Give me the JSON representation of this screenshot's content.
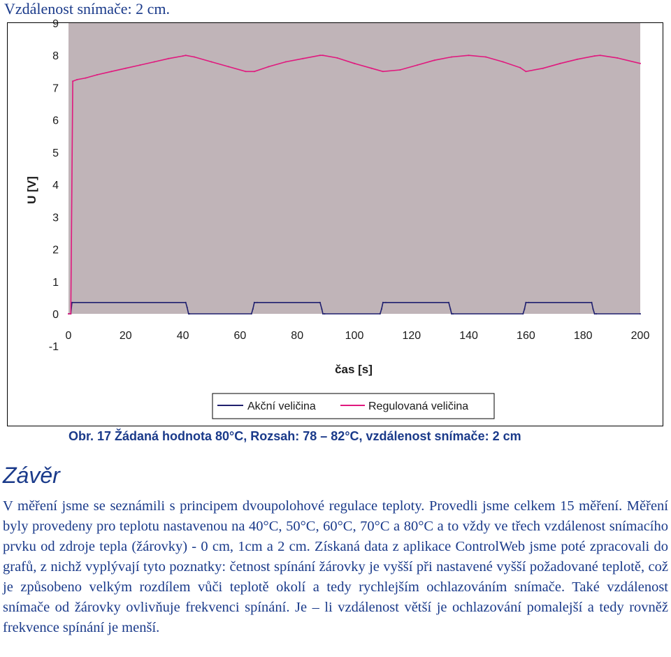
{
  "page": {
    "top_note": "Vzdálenost snímače: 2 cm.",
    "caption": "Obr.  17 Žádaná hodnota 80°C, Rozsah: 78 – 82°C, vzdálenost snímače: 2 cm",
    "section_heading": "Závěr",
    "paragraph": "V měření jsme se seznámili s principem dvoupolohové regulace teploty. Provedli jsme celkem 15 měření. Měření byly provedeny pro teplotu nastavenou na 40°C, 50°C, 60°C, 70°C a 80°C a to vždy ve třech vzdálenost snímacího prvku od zdroje tepla (žárovky) - 0 cm, 1cm a 2 cm. Získaná data z aplikace ControlWeb jsme poté zpracovali do grafů, z nichž vyplývají tyto poznatky: četnost spínání žárovky je vyšší při nastavené vyšší požadované teplotě, což je způsobeno velkým rozdílem vůči teplotě okolí a tedy rychlejším ochlazováním snímače. Také vzdálenost snímače od žárovky ovlivňuje frekvenci spínání. Je – li vzdálenost větší je ochlazování pomalejší a tedy rovněž frekvence spínání je menší."
  },
  "chart_data": {
    "type": "line",
    "xlabel": "čas [s]",
    "ylabel": "U [V]",
    "xlim": [
      0,
      200
    ],
    "ylim": [
      -1,
      9
    ],
    "x_ticks": [
      "0",
      "20",
      "40",
      "60",
      "80",
      "100",
      "120",
      "140",
      "160",
      "180",
      "200"
    ],
    "y_ticks": [
      "9",
      "8",
      "7",
      "6",
      "5",
      "4",
      "3",
      "2",
      "1",
      "0",
      "-1"
    ],
    "plot_background": "#c0b4b8",
    "legend": {
      "placement": "bottom-right"
    },
    "series": [
      {
        "name": "Akční veličina",
        "color": "#1f1f6e",
        "x": [
          0,
          0.8,
          1.2,
          41,
          41.5,
          42,
          42.3,
          64,
          64.5,
          65,
          66,
          88,
          88.6,
          89,
          89.6,
          109,
          109.5,
          110,
          111,
          133,
          133.6,
          134,
          134.5,
          159,
          159.5,
          160,
          161,
          183,
          183.5,
          184,
          184.6,
          200
        ],
        "values": [
          0,
          0,
          0.35,
          0.35,
          0.2,
          0,
          0,
          0,
          0.15,
          0.35,
          0.35,
          0.35,
          0.15,
          0,
          0,
          0,
          0.15,
          0.35,
          0.35,
          0.35,
          0.15,
          0,
          0,
          0,
          0.15,
          0.35,
          0.35,
          0.35,
          0.15,
          0,
          0,
          0
        ]
      },
      {
        "name": "Regulovaná veličina",
        "color": "#e0197e",
        "x": [
          0,
          0.8,
          1.5,
          3,
          6,
          10,
          15,
          20,
          25,
          30,
          35,
          40,
          41,
          44,
          50,
          56,
          62,
          65,
          70,
          76,
          82,
          88,
          89,
          94,
          100,
          106,
          110,
          116,
          122,
          128,
          134,
          140,
          146,
          152,
          158,
          160,
          166,
          172,
          178,
          184,
          186,
          192,
          200
        ],
        "values": [
          0,
          0,
          7.2,
          7.25,
          7.3,
          7.4,
          7.5,
          7.6,
          7.7,
          7.8,
          7.9,
          7.98,
          8.0,
          7.95,
          7.8,
          7.65,
          7.5,
          7.5,
          7.65,
          7.8,
          7.9,
          8.0,
          8.0,
          7.92,
          7.75,
          7.6,
          7.5,
          7.55,
          7.7,
          7.85,
          7.95,
          8.0,
          7.95,
          7.8,
          7.62,
          7.5,
          7.6,
          7.75,
          7.88,
          7.98,
          8.0,
          7.92,
          7.75
        ]
      }
    ]
  }
}
